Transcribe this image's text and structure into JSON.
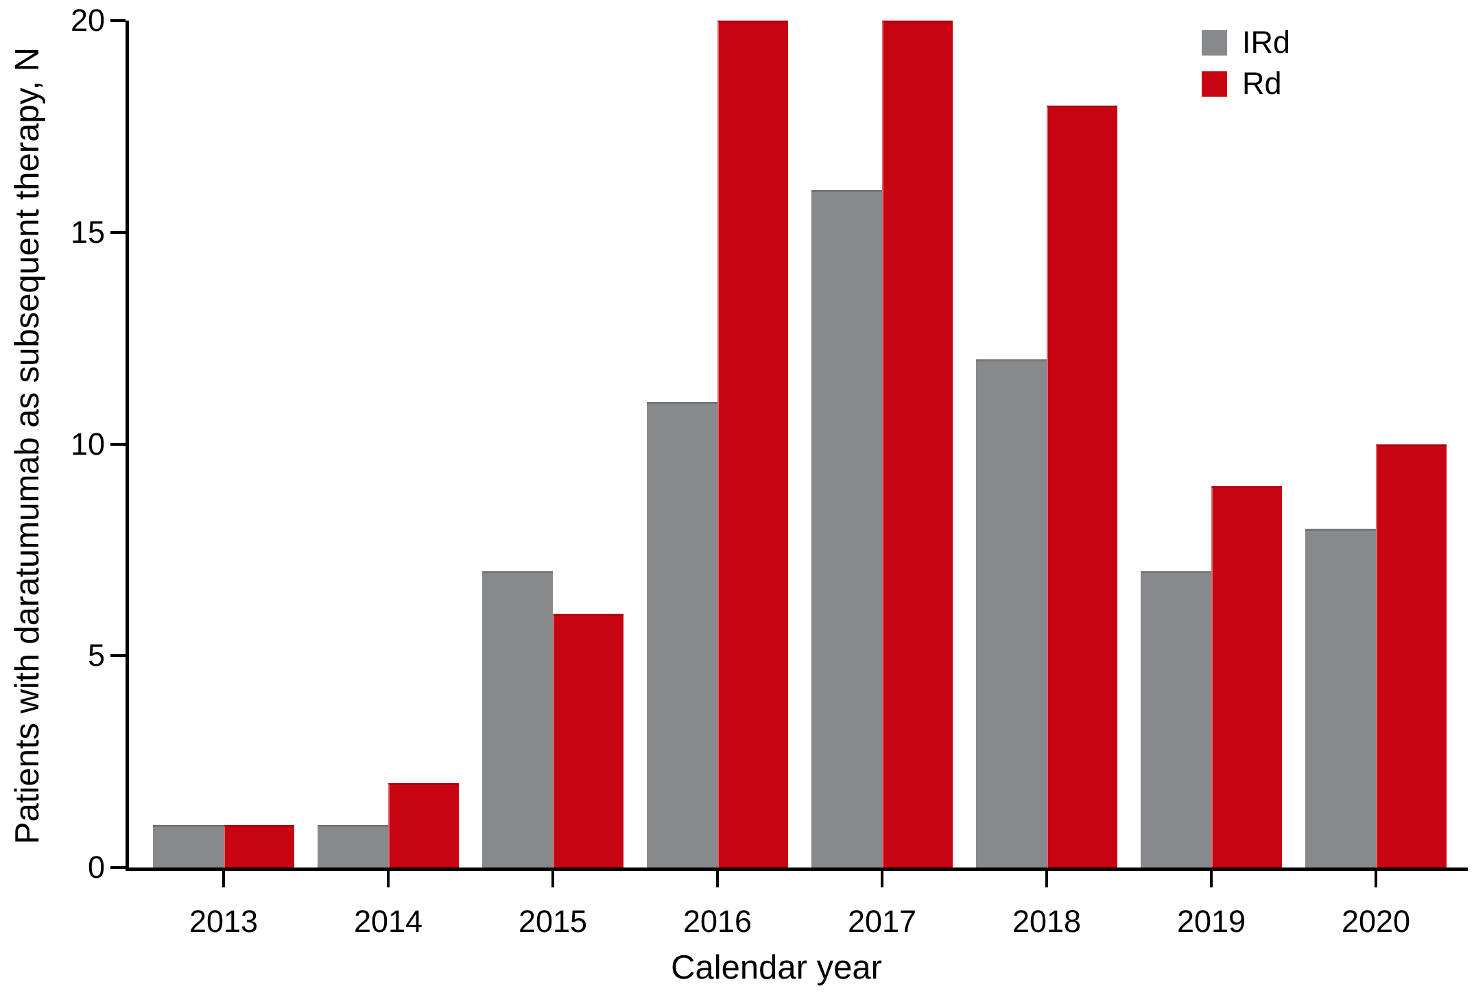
{
  "chart_data": {
    "type": "bar",
    "title": "",
    "xlabel": "Calendar year",
    "ylabel": "Patients with daratumumab as subsequent therapy, N",
    "categories": [
      "2013",
      "2014",
      "2015",
      "2016",
      "2017",
      "2018",
      "2019",
      "2020"
    ],
    "series": [
      {
        "name": "IRd",
        "color": "#87898C",
        "values": [
          1,
          1,
          7,
          11,
          16,
          12,
          7,
          8
        ]
      },
      {
        "name": "Rd",
        "color": "#C80412",
        "values": [
          1,
          2,
          6,
          20,
          20,
          18,
          9,
          10
        ]
      }
    ],
    "ylim": [
      0,
      20
    ],
    "yticks": [
      0,
      5,
      10,
      15,
      20
    ],
    "grid": false,
    "legend_position": "top-right",
    "axis_color": "#000000",
    "background_color": "#FFFFFF"
  }
}
